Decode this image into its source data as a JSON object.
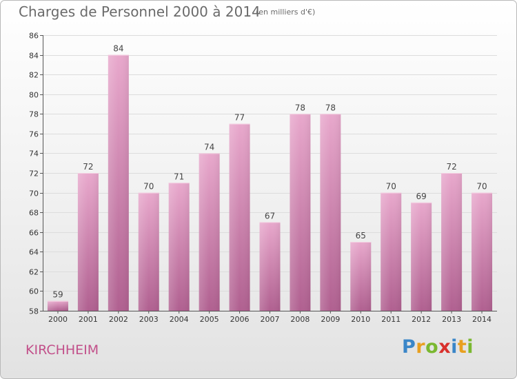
{
  "header": {
    "title": "Charges de Personnel 2000 à 2014",
    "subtitle": "(en milliers d'€)"
  },
  "footer": {
    "place": "KIRCHHEIM",
    "logo_letters": [
      "P",
      "r",
      "o",
      "x",
      "i",
      "t",
      "i"
    ],
    "logo_colors": [
      "#3a86c8",
      "#e8a020",
      "#7ab830",
      "#d8302c",
      "#3a86c8",
      "#e8a020",
      "#7ab830"
    ]
  },
  "colors": {
    "bar_light": "#e8a8cc",
    "bar_dark": "#b06090",
    "grid": "#dcdcdc",
    "axis": "#555555"
  },
  "chart_data": {
    "type": "bar",
    "title": "Charges de Personnel 2000 à 2014",
    "subtitle": "(en milliers d'€)",
    "categories": [
      "2000",
      "2001",
      "2002",
      "2003",
      "2004",
      "2005",
      "2006",
      "2007",
      "2008",
      "2009",
      "2010",
      "2011",
      "2012",
      "2013",
      "2014"
    ],
    "values": [
      59,
      72,
      84,
      70,
      71,
      74,
      77,
      67,
      78,
      78,
      65,
      70,
      69,
      72,
      70
    ],
    "ylim": [
      58,
      86
    ],
    "yticks": [
      "58",
      "60",
      "62",
      "64",
      "66",
      "68",
      "70",
      "72",
      "74",
      "76",
      "78",
      "80",
      "82",
      "84",
      "86"
    ],
    "grid": true,
    "legend": "none"
  }
}
